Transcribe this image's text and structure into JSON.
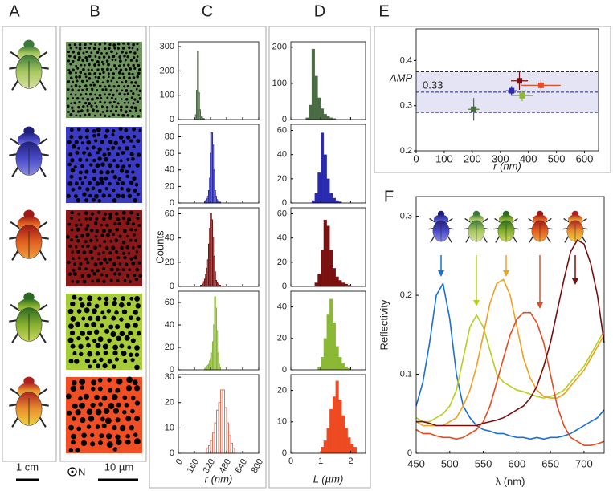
{
  "figure": {
    "panel_labels": [
      "A",
      "B",
      "C",
      "D",
      "E",
      "F"
    ],
    "scale_a": "1 cm",
    "scale_b": "10 µm",
    "orientation": "N"
  },
  "chart_data": [
    {
      "type": "histogram",
      "color": "#4a6b43",
      "outline": true,
      "bins": [
        160,
        170,
        180,
        190,
        200,
        210,
        220,
        230,
        240,
        250,
        260
      ],
      "values": [
        5,
        20,
        120,
        280,
        110,
        40,
        15,
        10,
        5,
        3
      ],
      "xlim": [
        0,
        800
      ],
      "ylim": [
        0,
        320
      ],
      "yticks": [
        0,
        100,
        200,
        300
      ]
    },
    {
      "type": "histogram",
      "color": "#2a2ab0",
      "outline": true,
      "bins": [
        260,
        270,
        280,
        290,
        300,
        310,
        320,
        330,
        340,
        350,
        360,
        370,
        380,
        390,
        400,
        410,
        420
      ],
      "values": [
        2,
        3,
        5,
        8,
        15,
        30,
        60,
        85,
        70,
        40,
        15,
        8,
        4,
        2,
        1,
        1
      ],
      "xlim": [
        0,
        800
      ],
      "ylim": [
        0,
        95
      ],
      "yticks": [
        0,
        20,
        40,
        60,
        80
      ]
    },
    {
      "type": "histogram",
      "color": "#7a1010",
      "outline": true,
      "bins": [
        220,
        230,
        240,
        250,
        260,
        270,
        280,
        290,
        300,
        310,
        320,
        330,
        340,
        350,
        360,
        370,
        380,
        390,
        400,
        410,
        420
      ],
      "values": [
        1,
        1,
        2,
        4,
        6,
        10,
        15,
        22,
        35,
        48,
        60,
        55,
        40,
        25,
        12,
        5,
        3,
        2,
        1,
        1
      ],
      "xlim": [
        0,
        800
      ],
      "ylim": [
        0,
        65
      ],
      "yticks": [
        0,
        20,
        40,
        60
      ],
      "ylabel": "Counts"
    },
    {
      "type": "histogram",
      "color": "#8ab832",
      "outline": true,
      "bins": [
        260,
        270,
        280,
        290,
        300,
        310,
        320,
        330,
        340,
        350,
        360,
        370,
        380,
        390,
        400,
        410,
        420
      ],
      "values": [
        1,
        2,
        3,
        4,
        5,
        8,
        10,
        15,
        25,
        40,
        65,
        55,
        35,
        15,
        5,
        2
      ],
      "xlim": [
        0,
        800
      ],
      "ylim": [
        0,
        70
      ],
      "yticks": [
        0,
        20,
        40,
        60
      ]
    },
    {
      "type": "histogram",
      "color": "#e8705a",
      "outline": true,
      "bins": [
        280,
        300,
        320,
        340,
        360,
        380,
        400,
        420,
        440,
        460,
        480,
        500,
        520,
        540,
        560
      ],
      "values": [
        2,
        3,
        5,
        8,
        12,
        17,
        20,
        25,
        25,
        18,
        12,
        7,
        4,
        2
      ],
      "xlim": [
        0,
        800
      ],
      "ylim": [
        0,
        31
      ],
      "yticks": [
        0,
        10,
        20,
        30
      ],
      "xticks": [
        0,
        160,
        320,
        480,
        640,
        800
      ],
      "xlabel": "r (nm)"
    },
    {
      "type": "histogram",
      "color": "#4a6b43",
      "outline": false,
      "bins": [
        0.5,
        0.6,
        0.7,
        0.8,
        0.9,
        1.0,
        1.1,
        1.2,
        1.3,
        1.4,
        1.5
      ],
      "values": [
        5,
        40,
        195,
        120,
        60,
        30,
        15,
        10,
        5,
        3
      ],
      "xlim": [
        0,
        2.5
      ],
      "ylim": [
        0,
        215
      ],
      "yticks": [
        0,
        100,
        200
      ]
    },
    {
      "type": "histogram",
      "color": "#2a2ab0",
      "outline": false,
      "bins": [
        0.7,
        0.8,
        0.9,
        1.0,
        1.1,
        1.2,
        1.3,
        1.4,
        1.5,
        1.6,
        1.7
      ],
      "values": [
        2,
        8,
        25,
        58,
        40,
        20,
        8,
        4,
        2,
        1
      ],
      "xlim": [
        0,
        2.5
      ],
      "ylim": [
        0,
        65
      ],
      "yticks": [
        0,
        20,
        40,
        60
      ]
    },
    {
      "type": "histogram",
      "color": "#7a1010",
      "outline": false,
      "bins": [
        0.8,
        0.9,
        1.0,
        1.1,
        1.2,
        1.3,
        1.4,
        1.5,
        1.6,
        1.7,
        1.8,
        1.9,
        2.0
      ],
      "values": [
        3,
        10,
        30,
        55,
        50,
        30,
        15,
        8,
        5,
        3,
        2,
        1
      ],
      "xlim": [
        0,
        2.5
      ],
      "ylim": [
        0,
        65
      ],
      "yticks": [
        0,
        20,
        40,
        60
      ]
    },
    {
      "type": "histogram",
      "color": "#8ab832",
      "outline": false,
      "bins": [
        0.9,
        1.0,
        1.1,
        1.2,
        1.3,
        1.4,
        1.5,
        1.6,
        1.7,
        1.8,
        1.9,
        2.0
      ],
      "values": [
        2,
        8,
        20,
        35,
        45,
        30,
        15,
        8,
        4,
        2,
        1
      ],
      "xlim": [
        0,
        2.5
      ],
      "ylim": [
        0,
        50
      ],
      "yticks": [
        0,
        20,
        40
      ]
    },
    {
      "type": "histogram",
      "color": "#ee4a22",
      "outline": false,
      "bins": [
        1.0,
        1.1,
        1.2,
        1.3,
        1.4,
        1.5,
        1.6,
        1.7,
        1.8,
        1.9,
        2.0,
        2.1,
        2.2
      ],
      "values": [
        2,
        4,
        8,
        14,
        18,
        23,
        17,
        12,
        8,
        5,
        3,
        2
      ],
      "xlim": [
        0,
        2.5
      ],
      "ylim": [
        0,
        25
      ],
      "yticks": [
        0,
        10,
        20
      ],
      "xticks": [
        0,
        1,
        2
      ],
      "xlabel": "L (µm)"
    },
    {
      "type": "scatter",
      "xlabel": "r (nm)",
      "ylabel": "AMP",
      "xlim": [
        0,
        650
      ],
      "ylim": [
        0.2,
        0.47
      ],
      "xticks": [
        0,
        100,
        200,
        300,
        400,
        500,
        600
      ],
      "yticks": [
        0.2,
        0.3,
        0.4
      ],
      "band": [
        0.285,
        0.375
      ],
      "hline": 0.33,
      "band_color": "#e4e4f4",
      "series": [
        {
          "color": "#4a6b43",
          "x": [
            205
          ],
          "values": [
            0.292
          ],
          "xerr": [
            20
          ],
          "yerr": [
            0.025
          ]
        },
        {
          "color": "#2a2ab0",
          "x": [
            340
          ],
          "values": [
            0.333
          ],
          "xerr": [
            20
          ],
          "yerr": [
            0.01
          ]
        },
        {
          "color": "#7a1010",
          "x": [
            368
          ],
          "values": [
            0.355
          ],
          "xerr": [
            30
          ],
          "yerr": [
            0.02
          ]
        },
        {
          "color": "#8ab832",
          "x": [
            378
          ],
          "values": [
            0.322
          ],
          "xerr": [
            40
          ],
          "yerr": [
            0.012
          ]
        },
        {
          "color": "#ee4a22",
          "x": [
            445
          ],
          "values": [
            0.345
          ],
          "xerr": [
            70
          ],
          "yerr": [
            0.012
          ]
        }
      ]
    },
    {
      "type": "line",
      "xlabel": "λ (nm)",
      "ylabel": "Reflectivity",
      "xlim": [
        450,
        730
      ],
      "ylim": [
        0,
        0.325
      ],
      "xticks": [
        450,
        500,
        550,
        600,
        650,
        700
      ],
      "yticks": [
        0,
        0.1,
        0.2,
        0.3
      ],
      "x": [
        450,
        460,
        470,
        480,
        490,
        500,
        510,
        520,
        530,
        540,
        550,
        560,
        570,
        580,
        590,
        600,
        610,
        620,
        630,
        640,
        650,
        660,
        670,
        680,
        690,
        700,
        710,
        720,
        730
      ],
      "series": [
        {
          "color": "#1a6fd8",
          "values": [
            0.06,
            0.09,
            0.14,
            0.2,
            0.215,
            0.17,
            0.1,
            0.06,
            0.045,
            0.035,
            0.03,
            0.028,
            0.025,
            0.025,
            0.022,
            0.02,
            0.02,
            0.018,
            0.02,
            0.018,
            0.02,
            0.02,
            0.022,
            0.025,
            0.03,
            0.035,
            0.04,
            0.045,
            0.055
          ]
        },
        {
          "color": "#b4d020",
          "values": [
            0.045,
            0.04,
            0.04,
            0.045,
            0.05,
            0.06,
            0.08,
            0.12,
            0.16,
            0.175,
            0.16,
            0.13,
            0.1,
            0.09,
            0.085,
            0.08,
            0.078,
            0.075,
            0.072,
            0.07,
            0.072,
            0.075,
            0.08,
            0.09,
            0.1,
            0.11,
            0.125,
            0.14,
            0.155
          ]
        },
        {
          "color": "#f0a020",
          "values": [
            0.04,
            0.035,
            0.035,
            0.035,
            0.035,
            0.04,
            0.045,
            0.06,
            0.08,
            0.11,
            0.15,
            0.19,
            0.215,
            0.22,
            0.2,
            0.16,
            0.12,
            0.095,
            0.08,
            0.072,
            0.07,
            0.07,
            0.075,
            0.085,
            0.095,
            0.105,
            0.12,
            0.135,
            0.15
          ]
        },
        {
          "color": "#e84a20",
          "values": [
            0.03,
            0.025,
            0.025,
            0.022,
            0.02,
            0.02,
            0.018,
            0.02,
            0.025,
            0.03,
            0.04,
            0.06,
            0.09,
            0.12,
            0.15,
            0.17,
            0.178,
            0.178,
            0.165,
            0.14,
            0.1,
            0.06,
            0.035,
            0.02,
            0.015,
            0.01,
            0.01,
            0.012,
            0.015
          ]
        },
        {
          "color": "#7a0e0e",
          "values": [
            0.04,
            0.04,
            0.038,
            0.035,
            0.035,
            0.035,
            0.035,
            0.035,
            0.035,
            0.035,
            0.038,
            0.04,
            0.042,
            0.045,
            0.05,
            0.055,
            0.06,
            0.07,
            0.085,
            0.11,
            0.14,
            0.18,
            0.22,
            0.255,
            0.27,
            0.265,
            0.24,
            0.2,
            0.14
          ]
        }
      ]
    }
  ]
}
